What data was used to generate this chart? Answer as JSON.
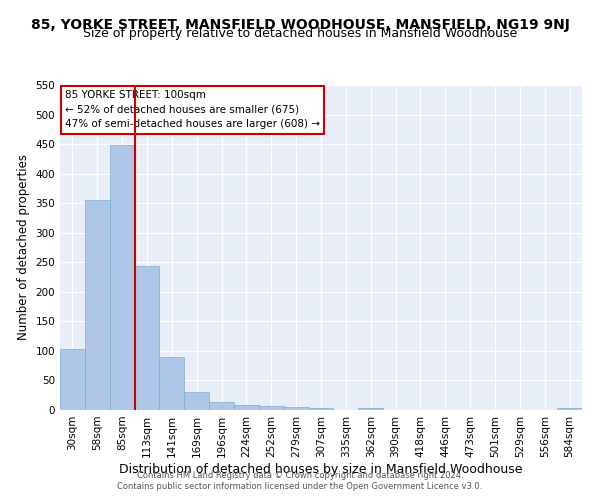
{
  "title": "85, YORKE STREET, MANSFIELD WOODHOUSE, MANSFIELD, NG19 9NJ",
  "subtitle": "Size of property relative to detached houses in Mansfield Woodhouse",
  "xlabel": "Distribution of detached houses by size in Mansfield Woodhouse",
  "ylabel": "Number of detached properties",
  "bin_labels": [
    "30sqm",
    "58sqm",
    "85sqm",
    "113sqm",
    "141sqm",
    "169sqm",
    "196sqm",
    "224sqm",
    "252sqm",
    "279sqm",
    "307sqm",
    "335sqm",
    "362sqm",
    "390sqm",
    "418sqm",
    "446sqm",
    "473sqm",
    "501sqm",
    "529sqm",
    "556sqm",
    "584sqm"
  ],
  "bar_values": [
    103,
    356,
    449,
    243,
    89,
    31,
    14,
    9,
    6,
    5,
    3,
    0,
    4,
    0,
    0,
    0,
    0,
    0,
    0,
    0,
    4
  ],
  "bar_color": "#aec6e8",
  "bar_edge_color": "#7dadd4",
  "vline_index": 2,
  "vline_color": "#cc0000",
  "ylim": [
    0,
    550
  ],
  "yticks": [
    0,
    50,
    100,
    150,
    200,
    250,
    300,
    350,
    400,
    450,
    500,
    550
  ],
  "annotation_title": "85 YORKE STREET: 100sqm",
  "annotation_line1": "← 52% of detached houses are smaller (675)",
  "annotation_line2": "47% of semi-detached houses are larger (608) →",
  "annotation_box_color": "#ffffff",
  "annotation_box_edge": "#cc0000",
  "background_color": "#e8eef7",
  "footer_line1": "Contains HM Land Registry data © Crown copyright and database right 2024.",
  "footer_line2": "Contains public sector information licensed under the Open Government Licence v3.0.",
  "title_fontsize": 10,
  "subtitle_fontsize": 9,
  "xlabel_fontsize": 9,
  "ylabel_fontsize": 8.5,
  "tick_fontsize": 7.5,
  "annot_fontsize": 7.5,
  "footer_fontsize": 6
}
